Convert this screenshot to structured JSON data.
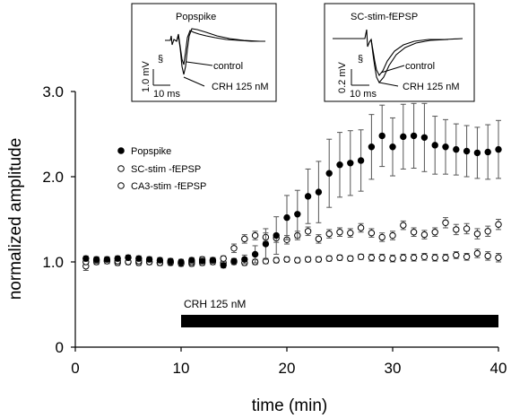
{
  "chart_data": {
    "type": "scatter",
    "xlabel": "time (min)",
    "ylabel": "normalized amplitude",
    "xlim": [
      0,
      40
    ],
    "ylim": [
      0,
      3.0
    ],
    "x_ticks": [
      0,
      10,
      20,
      30,
      40
    ],
    "y_ticks": [
      "0",
      "1.0",
      "2.0",
      "3.0"
    ],
    "legend_position": "left",
    "series": [
      {
        "name": "Popspike",
        "marker": "filled-circle",
        "x": [
          1,
          2,
          3,
          4,
          5,
          6,
          7,
          8,
          9,
          10,
          11,
          12,
          13,
          14,
          15,
          16,
          17,
          18,
          19,
          20,
          21,
          22,
          23,
          24,
          25,
          26,
          27,
          28,
          29,
          30,
          31,
          32,
          33,
          34,
          35,
          36,
          37,
          38,
          39,
          40
        ],
        "y": [
          1.04,
          1.03,
          1.03,
          1.04,
          1.05,
          1.04,
          1.03,
          1.02,
          1.01,
          1.0,
          1.02,
          1.01,
          1.02,
          0.96,
          1.01,
          1.03,
          1.09,
          1.21,
          1.31,
          1.52,
          1.56,
          1.77,
          1.82,
          2.04,
          2.14,
          2.16,
          2.19,
          2.35,
          2.48,
          2.35,
          2.47,
          2.48,
          2.46,
          2.37,
          2.35,
          2.32,
          2.3,
          2.28,
          2.29,
          2.32
        ],
        "err": [
          0.03,
          0.03,
          0.03,
          0.03,
          0.03,
          0.03,
          0.03,
          0.03,
          0.03,
          0.03,
          0.03,
          0.03,
          0.03,
          0.03,
          0.03,
          0.05,
          0.1,
          0.18,
          0.22,
          0.26,
          0.28,
          0.32,
          0.36,
          0.4,
          0.38,
          0.38,
          0.36,
          0.38,
          0.36,
          0.34,
          0.38,
          0.38,
          0.4,
          0.34,
          0.32,
          0.3,
          0.3,
          0.3,
          0.32,
          0.34
        ]
      },
      {
        "name": "SC-stim -fEPSP",
        "marker": "open-circle",
        "x": [
          1,
          2,
          3,
          4,
          5,
          6,
          7,
          8,
          9,
          10,
          11,
          12,
          13,
          14,
          15,
          16,
          17,
          18,
          19,
          20,
          21,
          22,
          23,
          24,
          25,
          26,
          27,
          28,
          29,
          30,
          31,
          32,
          33,
          34,
          35,
          36,
          37,
          38,
          39,
          40
        ],
        "y": [
          0.95,
          1.0,
          1.01,
          0.99,
          1.0,
          0.99,
          1.0,
          0.99,
          0.99,
          0.98,
          0.98,
          0.99,
          1.0,
          0.99,
          1.0,
          0.99,
          1.0,
          1.01,
          1.02,
          1.03,
          1.02,
          1.03,
          1.03,
          1.04,
          1.05,
          1.04,
          1.06,
          1.05,
          1.05,
          1.04,
          1.05,
          1.05,
          1.06,
          1.05,
          1.05,
          1.08,
          1.06,
          1.1,
          1.07,
          1.05
        ],
        "err": [
          0.05,
          0.03,
          0.03,
          0.03,
          0.03,
          0.03,
          0.03,
          0.03,
          0.03,
          0.03,
          0.03,
          0.03,
          0.03,
          0.03,
          0.03,
          0.03,
          0.03,
          0.03,
          0.03,
          0.03,
          0.03,
          0.03,
          0.03,
          0.03,
          0.03,
          0.03,
          0.03,
          0.04,
          0.04,
          0.04,
          0.04,
          0.04,
          0.04,
          0.04,
          0.04,
          0.04,
          0.04,
          0.05,
          0.05,
          0.05
        ]
      },
      {
        "name": "CA3-stim -fEPSP",
        "marker": "open-circle",
        "x": [
          1,
          2,
          3,
          4,
          5,
          6,
          7,
          8,
          9,
          10,
          11,
          12,
          13,
          14,
          15,
          16,
          17,
          18,
          19,
          20,
          21,
          22,
          23,
          24,
          25,
          26,
          27,
          28,
          29,
          30,
          31,
          32,
          33,
          34,
          35,
          36,
          37,
          38,
          39,
          40
        ],
        "y": [
          1.0,
          1.02,
          1.01,
          1.01,
          1.0,
          1.01,
          1.0,
          0.99,
          1.0,
          0.99,
          1.0,
          1.03,
          1.02,
          1.04,
          1.16,
          1.27,
          1.31,
          1.29,
          1.28,
          1.26,
          1.31,
          1.36,
          1.27,
          1.33,
          1.35,
          1.34,
          1.4,
          1.34,
          1.29,
          1.31,
          1.43,
          1.35,
          1.32,
          1.35,
          1.46,
          1.38,
          1.39,
          1.33,
          1.36,
          1.44
        ],
        "err": [
          0.03,
          0.03,
          0.03,
          0.03,
          0.03,
          0.03,
          0.03,
          0.03,
          0.03,
          0.03,
          0.03,
          0.03,
          0.03,
          0.03,
          0.05,
          0.05,
          0.05,
          0.05,
          0.05,
          0.05,
          0.05,
          0.05,
          0.05,
          0.05,
          0.05,
          0.05,
          0.05,
          0.05,
          0.05,
          0.05,
          0.05,
          0.05,
          0.05,
          0.05,
          0.06,
          0.06,
          0.06,
          0.06,
          0.06,
          0.06
        ]
      }
    ],
    "annotation_bar": {
      "label": "CRH 125 nM",
      "x_start": 10,
      "x_end": 40
    }
  },
  "insets": [
    {
      "title": "Popspike",
      "marker": "§",
      "scale_y": "1.0 mV",
      "scale_x": "10 ms",
      "label_control": "control",
      "label_treatment": "CRH 125 nM"
    },
    {
      "title": "SC-stim-fEPSP",
      "marker": "§",
      "scale_y": "0.2 mV",
      "scale_x": "10 ms",
      "label_control": "control",
      "label_treatment": "CRH 125 nM"
    }
  ]
}
